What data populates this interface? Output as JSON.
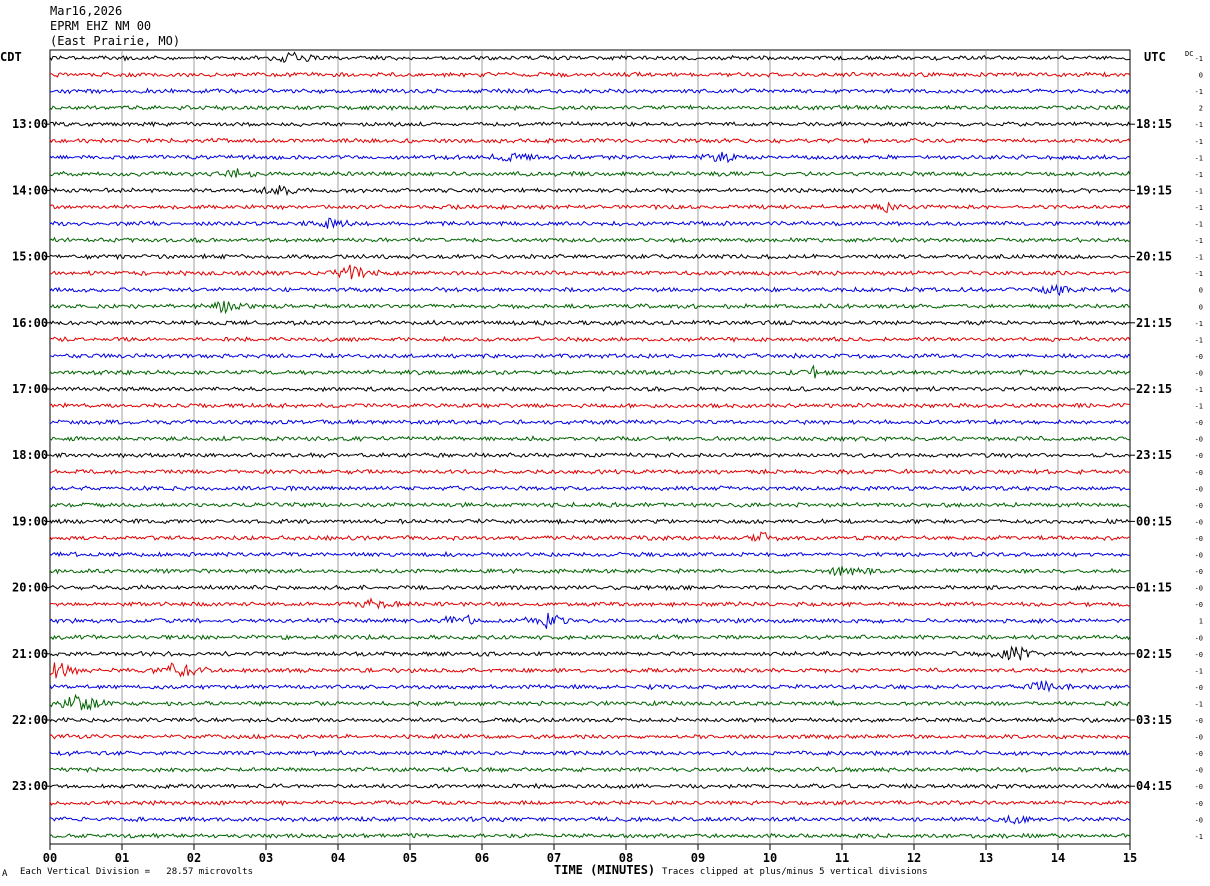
{
  "header": {
    "date": "Mar16,2026",
    "station": "EPRM EHZ NM 00",
    "location": "(East Prairie, MO)"
  },
  "footer": {
    "vertical_division": "Each Vertical Division =   28.57 microvolts",
    "clip_note": "Traces clipped at plus/minus 5 vertical divisions",
    "corner_mark": "A"
  },
  "colors": {
    "trace_cycle": [
      "#000000",
      "#e00000",
      "#0000e0",
      "#006400"
    ],
    "grid": "#888888",
    "background": "#ffffff"
  },
  "chart_data": {
    "type": "line",
    "xlabel": "TIME (MINUTES)",
    "x_ticks": [
      "00",
      "01",
      "02",
      "03",
      "04",
      "05",
      "06",
      "07",
      "08",
      "09",
      "10",
      "11",
      "12",
      "13",
      "14",
      "15"
    ],
    "xlim": [
      0,
      15
    ],
    "left_axis_title": "CDT",
    "right_axis_title": "UTC",
    "dc_title": "DC",
    "rows_per_hour": 4,
    "row_count": 48,
    "left_hour_labels": [
      "13:00",
      "14:00",
      "15:00",
      "16:00",
      "17:00",
      "18:00",
      "19:00",
      "20:00",
      "21:00",
      "22:00",
      "23:00"
    ],
    "right_hour_labels": [
      "18:15",
      "19:15",
      "20:15",
      "21:15",
      "22:15",
      "23:15",
      "00:15",
      "01:15",
      "02:15",
      "03:15",
      "04:15"
    ],
    "hour_label_first_row": 4,
    "dc_offsets": [
      "-1",
      "0",
      "-1",
      "2",
      "-1",
      "-1",
      "-1",
      "-1",
      "-1",
      "-1",
      "-1",
      "-1",
      "-1",
      "-1",
      "0",
      "0",
      "-1",
      "-1",
      "-0",
      "-0",
      "-1",
      "-1",
      "-0",
      "-0",
      "-0",
      "-0",
      "-0",
      "-0",
      "-0",
      "-0",
      "-0",
      "-0",
      "-0",
      "-0",
      "1",
      "-0",
      "-0",
      "-1",
      "-0",
      "-1",
      "-0",
      "-0",
      "-0",
      "-0",
      "-0",
      "-0",
      "-0",
      "-1"
    ],
    "events": [
      {
        "row": 0,
        "minute": 3.4,
        "amp": 2.2
      },
      {
        "row": 6,
        "minute": 9.3,
        "amp": 2.0
      },
      {
        "row": 6,
        "minute": 6.4,
        "amp": 1.8
      },
      {
        "row": 7,
        "minute": 2.6,
        "amp": 1.8
      },
      {
        "row": 8,
        "minute": 3.2,
        "amp": 1.8
      },
      {
        "row": 9,
        "minute": 11.6,
        "amp": 1.6
      },
      {
        "row": 10,
        "minute": 3.9,
        "amp": 1.8
      },
      {
        "row": 13,
        "minute": 4.2,
        "amp": 3.2
      },
      {
        "row": 14,
        "minute": 14.0,
        "amp": 1.8
      },
      {
        "row": 15,
        "minute": 2.4,
        "amp": 2.4
      },
      {
        "row": 19,
        "minute": 10.6,
        "amp": 1.8
      },
      {
        "row": 29,
        "minute": 9.9,
        "amp": 1.8
      },
      {
        "row": 31,
        "minute": 11.1,
        "amp": 2.6
      },
      {
        "row": 33,
        "minute": 4.5,
        "amp": 2.0
      },
      {
        "row": 34,
        "minute": 5.7,
        "amp": 3.0
      },
      {
        "row": 34,
        "minute": 6.9,
        "amp": 2.8
      },
      {
        "row": 36,
        "minute": 13.4,
        "amp": 3.0
      },
      {
        "row": 37,
        "minute": 0.1,
        "amp": 3.4
      },
      {
        "row": 37,
        "minute": 1.8,
        "amp": 4.0
      },
      {
        "row": 38,
        "minute": 13.8,
        "amp": 2.4
      },
      {
        "row": 39,
        "minute": 0.4,
        "amp": 4.2
      },
      {
        "row": 46,
        "minute": 13.4,
        "amp": 1.6
      }
    ]
  }
}
